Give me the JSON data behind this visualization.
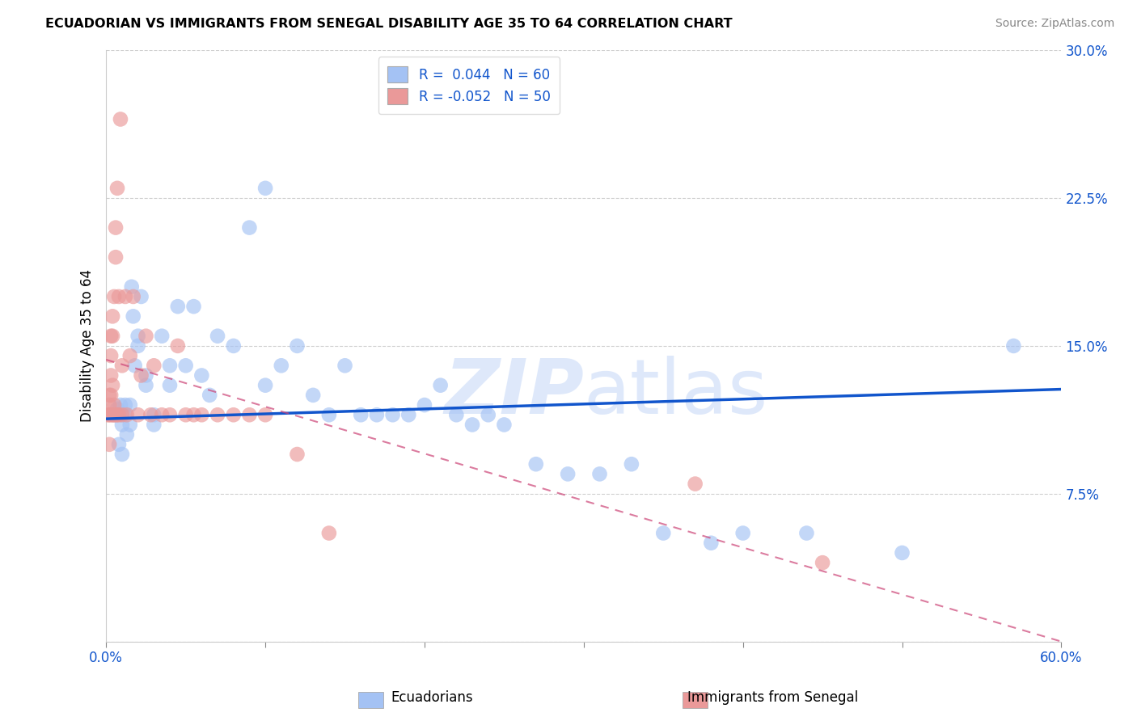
{
  "title": "ECUADORIAN VS IMMIGRANTS FROM SENEGAL DISABILITY AGE 35 TO 64 CORRELATION CHART",
  "source": "Source: ZipAtlas.com",
  "xlabel_blue": "Ecuadorians",
  "xlabel_pink": "Immigrants from Senegal",
  "ylabel": "Disability Age 35 to 64",
  "xlim": [
    0.0,
    0.6
  ],
  "ylim": [
    0.0,
    0.3
  ],
  "xticks": [
    0.0,
    0.1,
    0.2,
    0.3,
    0.4,
    0.5,
    0.6
  ],
  "xtick_labels": [
    "0.0%",
    "",
    "",
    "",
    "",
    "",
    "60.0%"
  ],
  "yticks": [
    0.0,
    0.075,
    0.15,
    0.225,
    0.3
  ],
  "ytick_labels": [
    "",
    "7.5%",
    "15.0%",
    "22.5%",
    "30.0%"
  ],
  "legend_blue_r": "0.044",
  "legend_blue_n": "60",
  "legend_pink_r": "-0.052",
  "legend_pink_n": "50",
  "blue_color": "#a4c2f4",
  "pink_color": "#ea9999",
  "trend_blue_color": "#1155cc",
  "trend_pink_color": "#cc4477",
  "watermark_color": "#c9daf8",
  "blue_x": [
    0.005,
    0.007,
    0.008,
    0.009,
    0.01,
    0.01,
    0.01,
    0.012,
    0.012,
    0.013,
    0.015,
    0.015,
    0.016,
    0.017,
    0.018,
    0.02,
    0.02,
    0.022,
    0.025,
    0.025,
    0.03,
    0.03,
    0.035,
    0.04,
    0.04,
    0.045,
    0.05,
    0.055,
    0.06,
    0.065,
    0.07,
    0.08,
    0.09,
    0.1,
    0.1,
    0.11,
    0.12,
    0.13,
    0.14,
    0.15,
    0.16,
    0.17,
    0.18,
    0.19,
    0.2,
    0.21,
    0.22,
    0.23,
    0.24,
    0.25,
    0.27,
    0.29,
    0.31,
    0.33,
    0.35,
    0.38,
    0.4,
    0.44,
    0.5,
    0.57
  ],
  "blue_y": [
    0.115,
    0.118,
    0.1,
    0.12,
    0.11,
    0.115,
    0.095,
    0.12,
    0.115,
    0.105,
    0.12,
    0.11,
    0.18,
    0.165,
    0.14,
    0.155,
    0.15,
    0.175,
    0.135,
    0.13,
    0.115,
    0.11,
    0.155,
    0.14,
    0.13,
    0.17,
    0.14,
    0.17,
    0.135,
    0.125,
    0.155,
    0.15,
    0.21,
    0.23,
    0.13,
    0.14,
    0.15,
    0.125,
    0.115,
    0.14,
    0.115,
    0.115,
    0.115,
    0.115,
    0.12,
    0.13,
    0.115,
    0.11,
    0.115,
    0.11,
    0.09,
    0.085,
    0.085,
    0.09,
    0.055,
    0.05,
    0.055,
    0.055,
    0.045,
    0.15
  ],
  "pink_x": [
    0.001,
    0.002,
    0.002,
    0.002,
    0.002,
    0.003,
    0.003,
    0.003,
    0.003,
    0.003,
    0.004,
    0.004,
    0.004,
    0.004,
    0.005,
    0.005,
    0.005,
    0.006,
    0.006,
    0.006,
    0.007,
    0.007,
    0.008,
    0.008,
    0.009,
    0.01,
    0.01,
    0.012,
    0.013,
    0.015,
    0.017,
    0.02,
    0.022,
    0.025,
    0.028,
    0.03,
    0.035,
    0.04,
    0.045,
    0.05,
    0.055,
    0.06,
    0.07,
    0.08,
    0.09,
    0.1,
    0.12,
    0.14,
    0.37,
    0.45
  ],
  "pink_y": [
    0.115,
    0.1,
    0.115,
    0.12,
    0.125,
    0.115,
    0.125,
    0.135,
    0.145,
    0.155,
    0.115,
    0.13,
    0.155,
    0.165,
    0.115,
    0.12,
    0.175,
    0.115,
    0.195,
    0.21,
    0.115,
    0.23,
    0.115,
    0.175,
    0.265,
    0.115,
    0.14,
    0.175,
    0.115,
    0.145,
    0.175,
    0.115,
    0.135,
    0.155,
    0.115,
    0.14,
    0.115,
    0.115,
    0.15,
    0.115,
    0.115,
    0.115,
    0.115,
    0.115,
    0.115,
    0.115,
    0.095,
    0.055,
    0.08,
    0.04
  ],
  "trend_blue_start_y": 0.113,
  "trend_blue_end_y": 0.128,
  "trend_pink_start_y": 0.143,
  "trend_pink_end_y": 0.0
}
